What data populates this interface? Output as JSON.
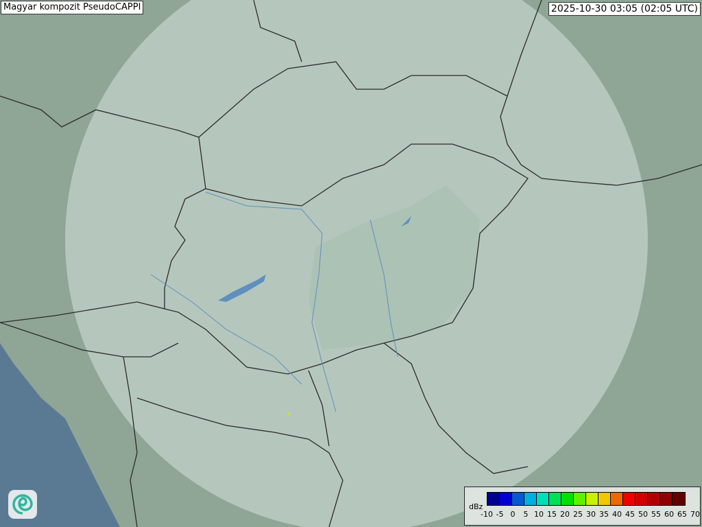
{
  "title": "Magyar kompozit  PseudoCAPPI",
  "timestamp": "2025-10-30 03:05 (02:05 UTC)",
  "logo_icon": "swirl-logo-icon",
  "legend": {
    "unit": "dBz",
    "ticks": [
      "-10",
      "-5",
      "0",
      "5",
      "10",
      "15",
      "20",
      "25",
      "30",
      "35",
      "40",
      "45",
      "50",
      "55",
      "60",
      "65",
      "70"
    ],
    "colors": [
      "#000090",
      "#0000d0",
      "#0858d0",
      "#00b0e0",
      "#00e0b8",
      "#00e058",
      "#00e000",
      "#60f000",
      "#c8f000",
      "#f0c800",
      "#f06800",
      "#f00000",
      "#d00000",
      "#b00000",
      "#900000",
      "#600000"
    ]
  },
  "colors": {
    "terrain": "#8fa596",
    "radar_coverage": "#c8d8d0",
    "sea": "#5a7a94",
    "border": "#2a2a2a",
    "water": "#5e8fbf"
  }
}
